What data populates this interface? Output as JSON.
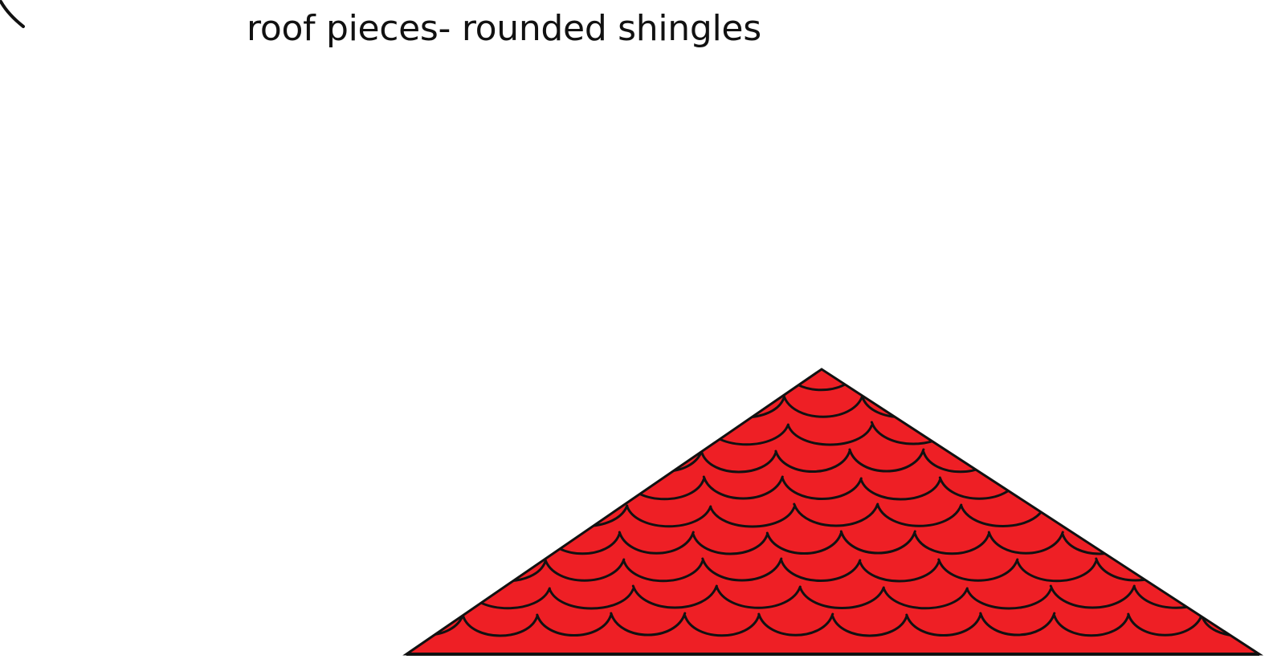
{
  "title": "roof pieces- rounded shingles",
  "colors": {
    "roof_fill": "#ee1f25",
    "stroke": "#111111",
    "background": "#ffffff"
  },
  "roof": {
    "shape": "triangle",
    "pattern": "rounded-scallop-shingles"
  },
  "corner_mark": "curved-stroke"
}
